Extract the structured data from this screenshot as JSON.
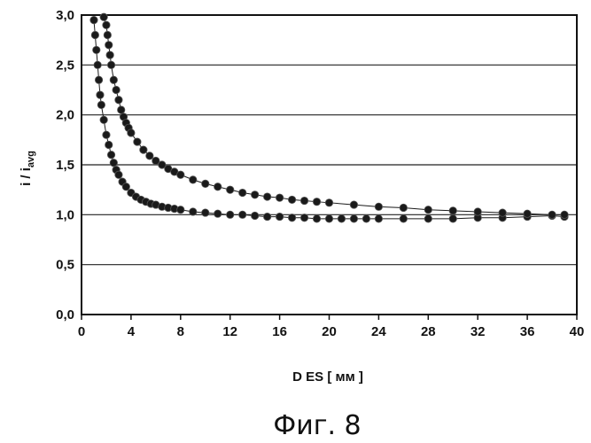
{
  "chart_data": {
    "type": "scatter",
    "title": "",
    "xlabel": "D ES [ мм ]",
    "ylabel_main": "i / i",
    "ylabel_sub": "avg",
    "caption": "Фиг. 8",
    "xlim": [
      0,
      40
    ],
    "ylim": [
      0,
      3
    ],
    "xticks": [
      "0",
      "4",
      "8",
      "12",
      "16",
      "20",
      "24",
      "28",
      "32",
      "36",
      "40"
    ],
    "yticks": [
      "0,0",
      "0,5",
      "1,0",
      "1,5",
      "2,0",
      "2,5",
      "3,0"
    ],
    "grid": "horizontal",
    "series": [
      {
        "x": [
          1.0,
          1.1,
          1.2,
          1.3,
          1.4,
          1.5,
          1.6,
          1.8,
          2.0,
          2.2,
          2.4,
          2.6,
          2.8,
          3.0,
          3.3,
          3.6,
          4.0,
          4.4,
          4.8,
          5.2,
          5.6,
          6.0,
          6.5,
          7.0,
          7.5,
          8.0,
          9.0,
          10.0,
          11.0,
          12.0,
          13.0,
          14.0,
          15.0,
          16.0,
          17.0,
          18.0,
          19.0,
          20.0,
          21.0,
          22.0,
          23.0,
          24.0,
          26.0,
          28.0,
          30.0,
          32.0,
          34.0,
          36.0,
          38.0,
          39.0
        ],
        "y": [
          2.95,
          2.8,
          2.65,
          2.5,
          2.35,
          2.2,
          2.1,
          1.95,
          1.8,
          1.7,
          1.6,
          1.52,
          1.45,
          1.4,
          1.33,
          1.28,
          1.22,
          1.18,
          1.15,
          1.13,
          1.11,
          1.1,
          1.08,
          1.07,
          1.06,
          1.05,
          1.03,
          1.02,
          1.01,
          1.0,
          1.0,
          0.99,
          0.98,
          0.98,
          0.97,
          0.97,
          0.96,
          0.96,
          0.96,
          0.96,
          0.96,
          0.96,
          0.96,
          0.96,
          0.96,
          0.97,
          0.97,
          0.98,
          0.99,
          0.98
        ],
        "color": "#1a1a1a"
      },
      {
        "x": [
          1.8,
          2.0,
          2.1,
          2.2,
          2.3,
          2.4,
          2.6,
          2.8,
          3.0,
          3.2,
          3.4,
          3.6,
          3.8,
          4.0,
          4.5,
          5.0,
          5.5,
          6.0,
          6.5,
          7.0,
          7.5,
          8.0,
          9.0,
          10.0,
          11.0,
          12.0,
          13.0,
          14.0,
          15.0,
          16.0,
          17.0,
          18.0,
          19.0,
          20.0,
          22.0,
          24.0,
          26.0,
          28.0,
          30.0,
          32.0,
          34.0,
          36.0,
          38.0,
          39.0
        ],
        "y": [
          2.98,
          2.9,
          2.8,
          2.7,
          2.6,
          2.5,
          2.35,
          2.25,
          2.15,
          2.05,
          1.98,
          1.92,
          1.87,
          1.82,
          1.73,
          1.65,
          1.59,
          1.54,
          1.5,
          1.46,
          1.43,
          1.4,
          1.35,
          1.31,
          1.28,
          1.25,
          1.22,
          1.2,
          1.18,
          1.17,
          1.15,
          1.14,
          1.13,
          1.12,
          1.1,
          1.08,
          1.07,
          1.05,
          1.04,
          1.03,
          1.02,
          1.01,
          1.0,
          1.0
        ],
        "color": "#1a1a1a"
      }
    ]
  }
}
